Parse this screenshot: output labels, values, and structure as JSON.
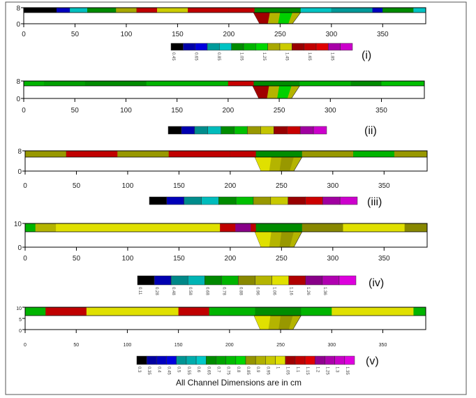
{
  "caption": "All Channel Dimensions are in cm",
  "chart_data": [
    {
      "type": "heatmap",
      "panel_label": "(i)",
      "xticks": [
        "0",
        "50",
        "100",
        "150",
        "200",
        "250",
        "300",
        "350"
      ],
      "yticks": [
        "8",
        "0"
      ],
      "xlim": [
        0,
        392
      ],
      "ylim": [
        0,
        8
      ],
      "colorbar": {
        "colors": [
          "#000000",
          "#0000a8",
          "#0000dd",
          "#009a9a",
          "#00c4c4",
          "#008c00",
          "#00b400",
          "#00d800",
          "#a8a800",
          "#cccc00",
          "#980000",
          "#c00000",
          "#e00000",
          "#a800a8",
          "#cc00cc"
        ],
        "labels": [
          "0.45",
          "0.65",
          "0.85",
          "1.05",
          "1.25",
          "1.45",
          "1.65",
          "1.85"
        ]
      }
    },
    {
      "type": "heatmap",
      "panel_label": "(ii)",
      "xticks": [
        "0",
        "50",
        "100",
        "150",
        "200",
        "250",
        "300",
        "350"
      ],
      "yticks": [
        "8",
        "0"
      ],
      "xlim": [
        0,
        392
      ],
      "ylim": [
        0,
        8
      ],
      "colorbar": {
        "colors": [
          "#000000",
          "#0000b0",
          "#008c8c",
          "#00bcbc",
          "#008c00",
          "#00c000",
          "#989800",
          "#c4c400",
          "#980000",
          "#c80000",
          "#a000a0",
          "#cc00cc"
        ],
        "labels": []
      }
    },
    {
      "type": "heatmap",
      "panel_label": "(iii)",
      "xticks": [
        "0",
        "50",
        "100",
        "150",
        "200",
        "250",
        "300",
        "350"
      ],
      "yticks": [
        "8",
        "0"
      ],
      "xlim": [
        0,
        392
      ],
      "ylim": [
        0,
        8
      ],
      "colorbar": {
        "colors": [
          "#000000",
          "#0000b8",
          "#008c8c",
          "#00bcbc",
          "#008c00",
          "#00c000",
          "#989800",
          "#c8c800",
          "#980000",
          "#cc0000",
          "#a000a0",
          "#cc00cc"
        ],
        "labels": []
      }
    },
    {
      "type": "heatmap",
      "panel_label": "(iv)",
      "xticks": [
        "0",
        "50",
        "100",
        "150",
        "200",
        "250",
        "300",
        "350"
      ],
      "yticks": [
        "10",
        "0"
      ],
      "xlim": [
        0,
        392
      ],
      "ylim": [
        0,
        10
      ],
      "colorbar": {
        "colors": [
          "#000000",
          "#0000b0",
          "#008888",
          "#00b4b4",
          "#008800",
          "#00b400",
          "#888800",
          "#b4b400",
          "#e0e000",
          "#b00000",
          "#880088",
          "#b000b0",
          "#dd00dd"
        ],
        "labels": [
          "0.11",
          "0.28",
          "0.48",
          "0.58",
          "0.68",
          "0.78",
          "0.88",
          "0.96",
          "1.06",
          "1.16",
          "1.26",
          "1.36"
        ]
      }
    },
    {
      "type": "heatmap",
      "panel_label": "(v)",
      "xticks": [
        "0",
        "50",
        "100",
        "150",
        "200",
        "250",
        "300",
        "350"
      ],
      "yticks": [
        "10",
        "5",
        "0"
      ],
      "xlim": [
        0,
        392
      ],
      "ylim": [
        0,
        10
      ],
      "colorbar": {
        "colors": [
          "#000000",
          "#0000a0",
          "#0000c0",
          "#0000e0",
          "#009494",
          "#00acac",
          "#00c8c8",
          "#008c00",
          "#00a400",
          "#00bc00",
          "#00d800",
          "#949400",
          "#b0b000",
          "#c8c800",
          "#e0e000",
          "#a00000",
          "#c00000",
          "#e00000",
          "#900090",
          "#ac00ac",
          "#c800c8",
          "#e000e0"
        ],
        "labels": [
          "0.3",
          "0.35",
          "0.4",
          "0.45",
          "0.5",
          "0.55",
          "0.6",
          "0.65",
          "0.7",
          "0.75",
          "0.8",
          "0.85",
          "0.9",
          "0.95",
          "1",
          "1.05",
          "1.1",
          "1.15",
          "1.2",
          "1.25",
          "1.3",
          "1.35"
        ]
      }
    }
  ]
}
